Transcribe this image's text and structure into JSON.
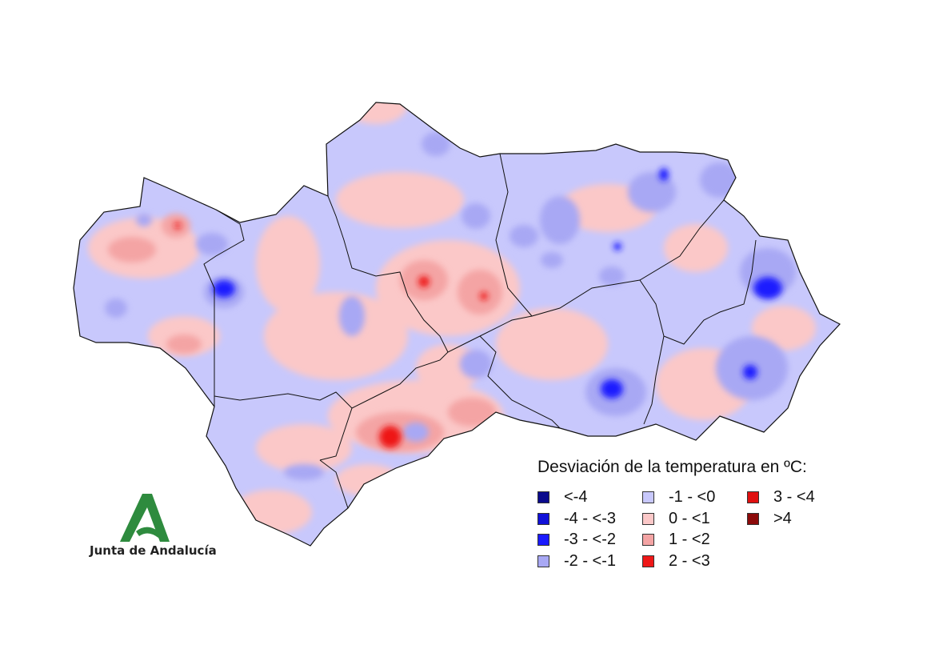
{
  "legend": {
    "title": "Desviación de la temperatura en ºC:",
    "items": [
      {
        "label": "<-4",
        "color": "#0a0a8c"
      },
      {
        "label": "-4 - <-3",
        "color": "#1010d8"
      },
      {
        "label": "-3 - <-2",
        "color": "#1a1aff"
      },
      {
        "label": "-2 - <-1",
        "color": "#a8a8f4"
      },
      {
        "label": "-1 - <0",
        "color": "#c8c8fc"
      },
      {
        "label": "0 - <1",
        "color": "#fbc8c8"
      },
      {
        "label": "1 - <2",
        "color": "#f4a4a4"
      },
      {
        "label": "2 - <3",
        "color": "#ee1818"
      },
      {
        "label": "3 - <4",
        "color": "#e01010"
      },
      {
        "label": ">4",
        "color": "#8c0a0a"
      }
    ]
  },
  "logo": {
    "text": "Junta de Andalucía",
    "color": "#2e8b3e"
  }
}
